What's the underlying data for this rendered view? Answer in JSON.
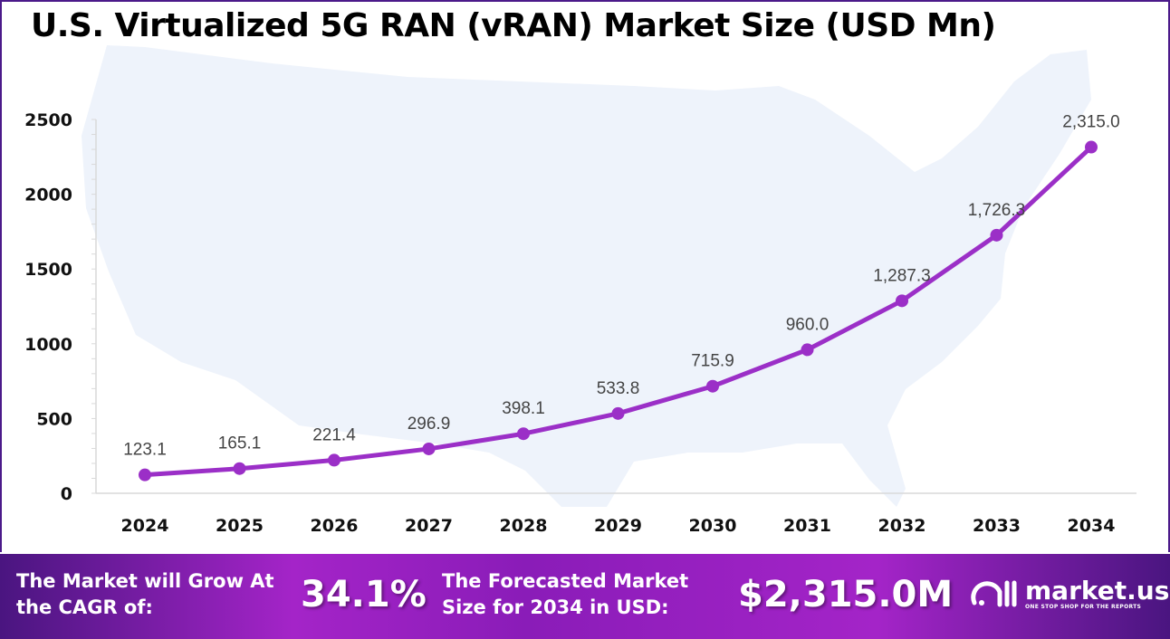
{
  "chart_data": {
    "type": "line",
    "title": "U.S. Virtualized 5G RAN (vRAN) Market Size (USD Mn)",
    "categories": [
      "2024",
      "2025",
      "2026",
      "2027",
      "2028",
      "2029",
      "2030",
      "2031",
      "2032",
      "2033",
      "2034"
    ],
    "values": [
      123.1,
      165.1,
      221.4,
      296.9,
      398.1,
      533.8,
      715.9,
      960.0,
      1287.3,
      1726.3,
      2315.0
    ],
    "data_labels": [
      "123.1",
      "165.1",
      "221.4",
      "296.9",
      "398.1",
      "533.8",
      "715.9",
      "960.0",
      "1,287.3",
      "1,726.3",
      "2,315.0"
    ],
    "yticks": [
      "0",
      "500",
      "1000",
      "1500",
      "2000",
      "2500"
    ],
    "ylim": [
      0,
      2500
    ],
    "grid": false,
    "line_color": "#9b2fc7"
  },
  "footer": {
    "cagr_label": "The Market will Grow At the CAGR of:",
    "cagr_value": "34.1%",
    "forecast_label": "The Forecasted Market Size for 2034 in USD:",
    "forecast_value": "$2,315.0M",
    "logo_name": "market.us",
    "logo_tagline": "ONE STOP SHOP FOR THE REPORTS"
  }
}
